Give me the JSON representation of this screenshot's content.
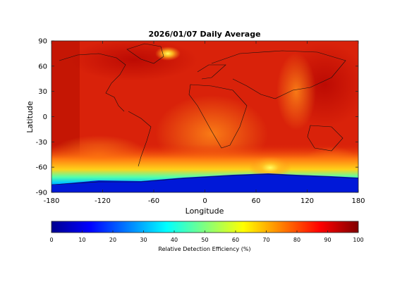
{
  "chart_data": {
    "type": "heatmap",
    "title": "2026/01/07 Daily Average",
    "xlabel": "Longitude",
    "ylabel": "Latitude",
    "xlim": [
      -180,
      180
    ],
    "ylim": [
      -90,
      90
    ],
    "xticks": [
      -180,
      -120,
      -60,
      0,
      60,
      120,
      180
    ],
    "yticks": [
      90,
      60,
      30,
      0,
      -30,
      -60,
      -90
    ],
    "grid": false,
    "colormap": "jet",
    "colorbar": {
      "label": "Relative Detection Efficiency (%)",
      "orientation": "horizontal",
      "placement": "bottom",
      "range": [
        0,
        100
      ],
      "ticks": [
        0,
        10,
        20,
        30,
        40,
        50,
        60,
        70,
        80,
        90,
        100
      ]
    },
    "description_values": {
      "typical_efficiency": 88,
      "high_efficiency_max": 100,
      "antarctic_min": 2
    }
  }
}
